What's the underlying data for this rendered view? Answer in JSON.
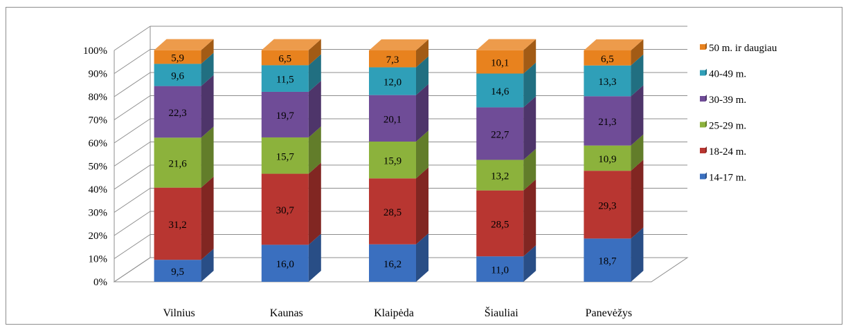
{
  "chart_data": {
    "type": "bar",
    "stacked": "percent",
    "three_d": true,
    "categories": [
      "Vilnius",
      "Kaunas",
      "Klaipėda",
      "Šiauliai",
      "Panevėžys"
    ],
    "series": [
      {
        "name": "14-17 m.",
        "color": "#3a6fbf",
        "values": [
          9.5,
          16.0,
          16.2,
          11.0,
          18.7
        ],
        "labels": [
          "9,5",
          "16,0",
          "16,2",
          "11,0",
          "18,7"
        ]
      },
      {
        "name": "18-24 m.",
        "color": "#b83631",
        "values": [
          31.2,
          30.7,
          28.5,
          28.5,
          29.3
        ],
        "labels": [
          "31,2",
          "30,7",
          "28,5",
          "28,5",
          "29,3"
        ]
      },
      {
        "name": "25-29 m.",
        "color": "#8cb23c",
        "values": [
          21.6,
          15.7,
          15.9,
          13.2,
          10.9
        ],
        "labels": [
          "21,6",
          "15,7",
          "15,9",
          "13,2",
          "10,9"
        ]
      },
      {
        "name": "30-39 m.",
        "color": "#6f4c97",
        "values": [
          22.3,
          19.7,
          20.1,
          22.7,
          21.3
        ],
        "labels": [
          "22,3",
          "19,7",
          "20,1",
          "22,7",
          "21,3"
        ]
      },
      {
        "name": "40-49 m.",
        "color": "#2f9fb8",
        "values": [
          9.6,
          11.5,
          12.0,
          14.6,
          13.3
        ],
        "labels": [
          "9,6",
          "11,5",
          "12,0",
          "14,6",
          "13,3"
        ]
      },
      {
        "name": "50 m. ir daugiau",
        "color": "#e8821e",
        "values": [
          5.9,
          6.5,
          7.3,
          10.1,
          6.5
        ],
        "labels": [
          "5,9",
          "6,5",
          "7,3",
          "10,1",
          "6,5"
        ]
      }
    ],
    "y_ticks": [
      "0%",
      "10%",
      "20%",
      "30%",
      "40%",
      "50%",
      "60%",
      "70%",
      "80%",
      "90%",
      "100%"
    ],
    "ylim": [
      0,
      100
    ],
    "grid": true,
    "legend_position": "right"
  }
}
